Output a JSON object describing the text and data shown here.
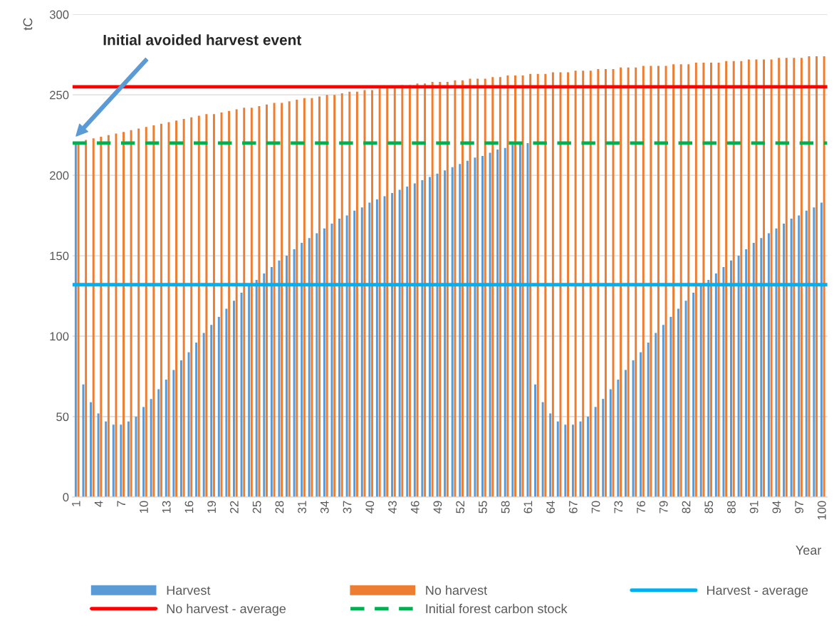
{
  "chart_data": {
    "type": "bar",
    "ylabel": "tC",
    "xlabel": "Year",
    "categories": [
      "1",
      null,
      null,
      "4",
      null,
      null,
      "7",
      null,
      null,
      "10",
      null,
      null,
      "13",
      null,
      null,
      "16",
      null,
      null,
      "19",
      null,
      null,
      "22",
      null,
      null,
      "25",
      null,
      null,
      "28",
      null,
      null,
      "31",
      null,
      null,
      "34",
      null,
      null,
      "37",
      null,
      null,
      "40",
      null,
      null,
      "43",
      null,
      null,
      "46",
      null,
      null,
      "49",
      null,
      null,
      "52",
      null,
      null,
      "55",
      null,
      null,
      "58",
      null,
      null,
      "61",
      null,
      null,
      "64",
      null,
      null,
      "67",
      null,
      null,
      "70",
      null,
      null,
      "73",
      null,
      null,
      "76",
      null,
      null,
      "79",
      null,
      null,
      "82",
      null,
      null,
      "85",
      null,
      null,
      "88",
      null,
      null,
      "91",
      null,
      null,
      "94",
      null,
      null,
      "97",
      null,
      null,
      "100"
    ],
    "series": [
      {
        "name": "Harvest",
        "color": "#5b9bd5",
        "values": [
          220,
          70,
          59,
          52,
          47,
          45,
          45,
          47,
          50,
          56,
          61,
          67,
          73,
          79,
          85,
          90,
          96,
          102,
          107,
          112,
          117,
          122,
          127,
          131,
          135,
          139,
          143,
          147,
          150,
          154,
          158,
          161,
          164,
          167,
          170,
          173,
          175,
          178,
          180,
          183,
          185,
          187,
          189,
          191,
          193,
          195,
          197,
          199,
          201,
          203,
          205,
          207,
          209,
          211,
          212,
          214,
          216,
          217,
          219,
          220,
          220,
          70,
          59,
          52,
          47,
          45,
          45,
          47,
          50,
          56,
          61,
          67,
          73,
          79,
          85,
          90,
          96,
          102,
          107,
          112,
          117,
          122,
          127,
          131,
          135,
          139,
          143,
          147,
          150,
          154,
          158,
          161,
          164,
          167,
          170,
          173,
          175,
          178,
          180,
          183
        ]
      },
      {
        "name": "No harvest",
        "color": "#ed7d31",
        "values": [
          220,
          222,
          223,
          224,
          225,
          226,
          227,
          228,
          229,
          230,
          231,
          232,
          233,
          234,
          235,
          236,
          237,
          238,
          238,
          239,
          240,
          241,
          242,
          242,
          243,
          244,
          245,
          245,
          246,
          247,
          248,
          248,
          249,
          250,
          250,
          251,
          252,
          252,
          253,
          253,
          254,
          255,
          255,
          256,
          256,
          257,
          257,
          258,
          258,
          258,
          259,
          259,
          260,
          260,
          260,
          261,
          261,
          262,
          262,
          262,
          263,
          263,
          263,
          264,
          264,
          264,
          265,
          265,
          265,
          266,
          266,
          266,
          267,
          267,
          267,
          268,
          268,
          268,
          268,
          269,
          269,
          269,
          270,
          270,
          270,
          270,
          271,
          271,
          271,
          272,
          272,
          272,
          272,
          273,
          273,
          273,
          273,
          274,
          274,
          274
        ]
      }
    ],
    "ref_lines": [
      {
        "axis": "y",
        "value": 132,
        "label": "Harvest - average",
        "color": "#00b0f0",
        "line_style": "solid"
      },
      {
        "axis": "y",
        "value": 255,
        "label": "No harvest - average",
        "color": "#ff0000",
        "line_style": "solid"
      },
      {
        "axis": "y",
        "value": 220,
        "label": "Initial forest carbon stock",
        "color": "#00b050",
        "line_style": "dashed"
      }
    ],
    "annotations": [
      "Initial avoided harvest event"
    ],
    "ylim": [
      0,
      300
    ],
    "yticks": [
      0,
      50,
      100,
      150,
      200,
      250,
      300
    ],
    "grid": "y",
    "legend": "bottom"
  }
}
